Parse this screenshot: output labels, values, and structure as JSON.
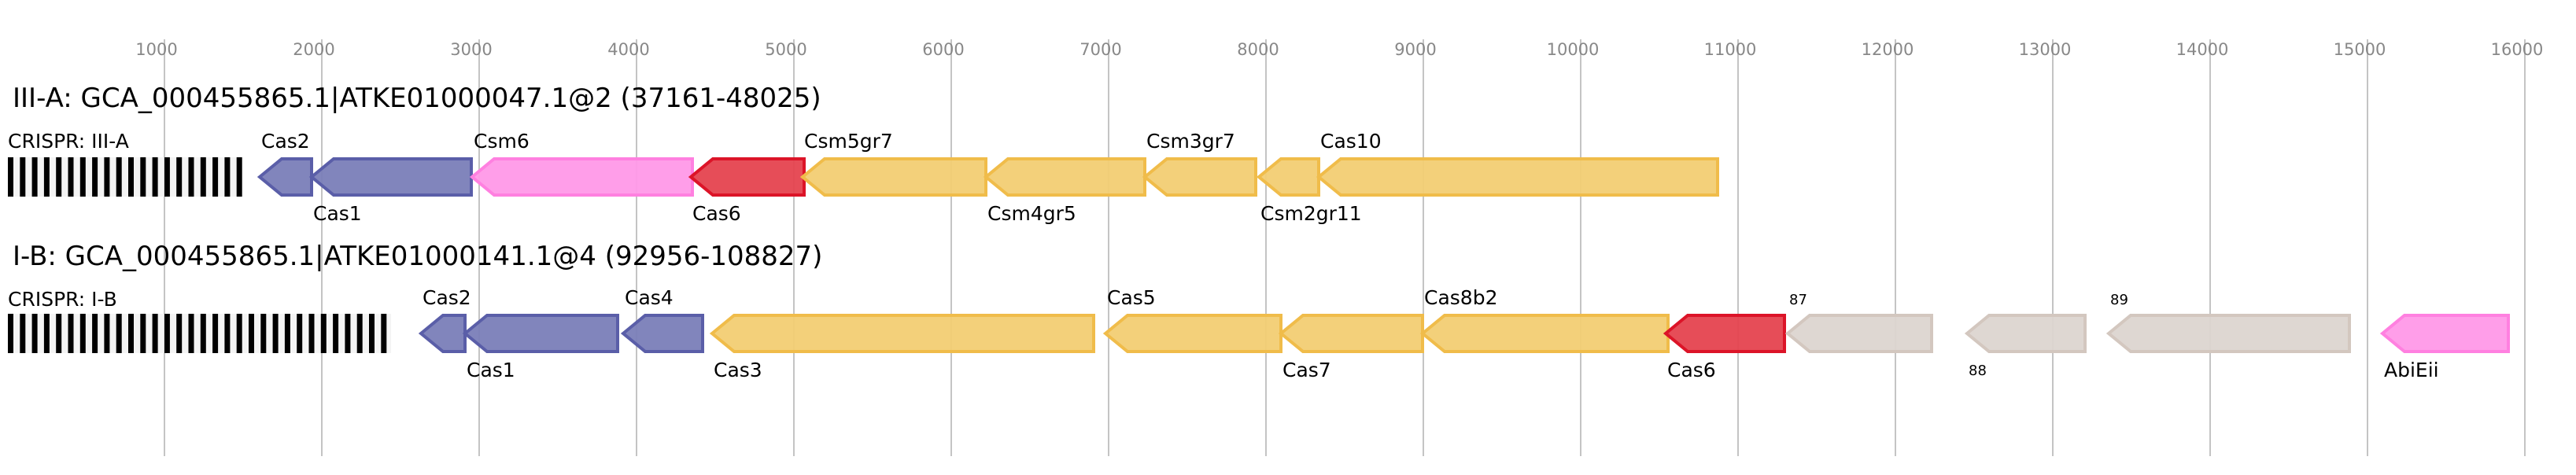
{
  "axis": {
    "ticks": [
      1000,
      2000,
      3000,
      4000,
      5000,
      6000,
      7000,
      8000,
      9000,
      10000,
      11000,
      12000,
      13000,
      14000,
      15000,
      16000
    ],
    "grid": true
  },
  "colors": {
    "blue": {
      "fill": "#7a7eb8",
      "stroke": "#5a5ea8"
    },
    "pink": {
      "fill": "#ff99e8",
      "stroke": "#ff80e0"
    },
    "red": {
      "fill": "#e5434f",
      "stroke": "#dc1428"
    },
    "yellow": {
      "fill": "#f2cd73",
      "stroke": "#f0bc4a"
    },
    "gray": {
      "fill": "#dcd5d0",
      "stroke": "#d3c7bf"
    }
  },
  "loci": [
    {
      "title": "III-A: GCA_000455865.1|ATKE01000047.1@2 (37161-48025)",
      "crispr": {
        "label": "CRISPR: III-A",
        "start": 5,
        "end": 1480
      },
      "genes": [
        {
          "name": "Cas2",
          "start": 1605,
          "end": 1935,
          "color": "blue",
          "label_pos": "above"
        },
        {
          "name": "Cas1",
          "start": 1935,
          "end": 2950,
          "color": "blue",
          "label_pos": "below"
        },
        {
          "name": "Csm6",
          "start": 2955,
          "end": 4355,
          "color": "pink",
          "label_pos": "above"
        },
        {
          "name": "Cas6",
          "start": 4345,
          "end": 5065,
          "color": "red",
          "label_pos": "below"
        },
        {
          "name": "Csm5gr7",
          "start": 5055,
          "end": 6220,
          "color": "yellow",
          "label_pos": "above"
        },
        {
          "name": "Csm4gr5",
          "start": 6220,
          "end": 7230,
          "color": "yellow",
          "label_pos": "below"
        },
        {
          "name": "Csm3gr7",
          "start": 7230,
          "end": 7935,
          "color": "yellow",
          "label_pos": "above"
        },
        {
          "name": "Csm2gr11",
          "start": 7955,
          "end": 8335,
          "color": "yellow",
          "label_pos": "below"
        },
        {
          "name": "Cas10",
          "start": 8335,
          "end": 10870,
          "color": "yellow",
          "label_pos": "above"
        }
      ]
    },
    {
      "title": "I-B: GCA_000455865.1|ATKE01000141.1@4 (92956-108827)",
      "crispr": {
        "label": "CRISPR: I-B",
        "start": 5,
        "end": 2440
      },
      "genes": [
        {
          "name": "Cas2",
          "start": 2630,
          "end": 2910,
          "color": "blue",
          "label_pos": "above"
        },
        {
          "name": "Cas1",
          "start": 2910,
          "end": 3880,
          "color": "blue",
          "label_pos": "below"
        },
        {
          "name": "Cas4",
          "start": 3915,
          "end": 4420,
          "color": "blue",
          "label_pos": "above"
        },
        {
          "name": "Cas3",
          "start": 4480,
          "end": 6905,
          "color": "yellow",
          "label_pos": "below"
        },
        {
          "name": "Cas5",
          "start": 6980,
          "end": 8095,
          "color": "yellow",
          "label_pos": "above"
        },
        {
          "name": "Cas7",
          "start": 8095,
          "end": 8995,
          "color": "yellow",
          "label_pos": "below"
        },
        {
          "name": "Cas8b2",
          "start": 8995,
          "end": 10555,
          "color": "yellow",
          "label_pos": "above"
        },
        {
          "name": "Cas6",
          "start": 10540,
          "end": 11295,
          "color": "red",
          "label_pos": "below"
        },
        {
          "name": "87",
          "start": 11315,
          "end": 12230,
          "color": "gray",
          "label_pos": "above"
        },
        {
          "name": "88",
          "start": 12455,
          "end": 13205,
          "color": "gray",
          "label_pos": "below"
        },
        {
          "name": "89",
          "start": 13355,
          "end": 14885,
          "color": "gray",
          "label_pos": "above"
        },
        {
          "name": "AbiEii",
          "start": 15095,
          "end": 15895,
          "color": "pink",
          "label_pos": "below"
        }
      ]
    }
  ]
}
